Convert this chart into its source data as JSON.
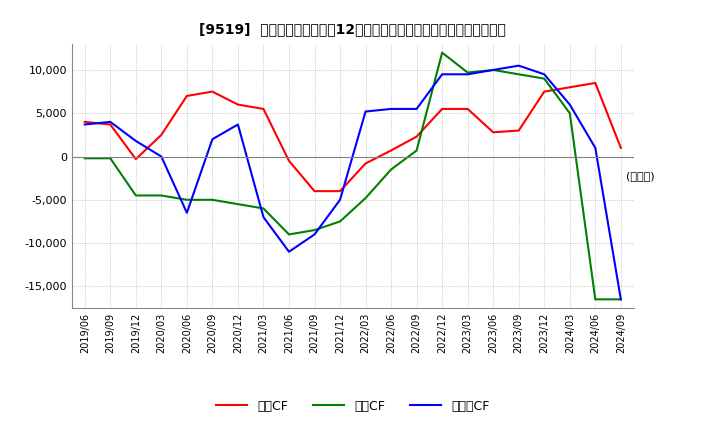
{
  "title": "[9519]  キャッシュフローの12か月移動合計の対前年同期増減額の推移",
  "ylabel": "(百万円)",
  "ylim": [
    -17500,
    13000
  ],
  "yticks": [
    -15000,
    -10000,
    -5000,
    0,
    5000,
    10000
  ],
  "legend_labels": [
    "営業CF",
    "投資CF",
    "フリーCF"
  ],
  "line_colors": [
    "#ff0000",
    "#008000",
    "#0000ff"
  ],
  "dates": [
    "2019/06",
    "2019/09",
    "2019/12",
    "2020/03",
    "2020/06",
    "2020/09",
    "2020/12",
    "2021/03",
    "2021/06",
    "2021/09",
    "2021/12",
    "2022/03",
    "2022/06",
    "2022/09",
    "2022/12",
    "2023/03",
    "2023/06",
    "2023/09",
    "2023/12",
    "2024/03",
    "2024/06",
    "2024/09"
  ],
  "operating_cf": [
    4000,
    3700,
    -300,
    2500,
    7000,
    7500,
    6000,
    5500,
    -500,
    -4000,
    -4000,
    -800,
    700,
    2300,
    5500,
    5500,
    2800,
    3000,
    7500,
    8000,
    8500,
    1000
  ],
  "investing_cf": [
    -200,
    -200,
    -4500,
    -4500,
    -5000,
    -5000,
    -5500,
    -6000,
    -9000,
    -8500,
    -7500,
    -4800,
    -1500,
    700,
    12000,
    9700,
    10000,
    9500,
    9000,
    5000,
    -16500,
    -16500
  ],
  "free_cf": [
    3700,
    4000,
    1800,
    0,
    -6500,
    2000,
    3700,
    -7000,
    -11000,
    -9000,
    -5000,
    5200,
    5500,
    5500,
    9500,
    9500,
    10000,
    10500,
    9500,
    6000,
    1000,
    -16500
  ],
  "background_color": "#ffffff",
  "grid_color": "#aaaaaa"
}
